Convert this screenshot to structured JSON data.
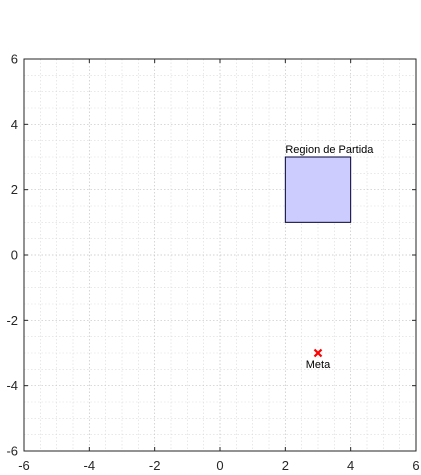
{
  "chart_data": {
    "type": "scatter",
    "title": "",
    "xlabel": "",
    "ylabel": "",
    "xlim": [
      -6,
      6
    ],
    "ylim": [
      -6,
      6
    ],
    "xticks": [
      -6,
      -4,
      -2,
      0,
      2,
      4,
      6
    ],
    "yticks": [
      -6,
      -4,
      -2,
      0,
      2,
      4,
      6
    ],
    "x_tick_labels": [
      "-6",
      "-4",
      "-2",
      "0",
      "2",
      "4",
      "6"
    ],
    "y_tick_labels": [
      "-6",
      "-4",
      "-2",
      "0",
      "2",
      "4",
      "6"
    ],
    "grid": "on",
    "minor_grid": "on",
    "minor_step": 0.5,
    "regions": [
      {
        "label": "Region de Partida",
        "x": [
          2,
          4
        ],
        "y": [
          1,
          3
        ],
        "fill_color": "#ccccff",
        "edge_color": "#000033"
      }
    ],
    "points": [
      {
        "label": "Meta",
        "x": 3,
        "y": -3,
        "marker": "x",
        "color": "#ff0000"
      }
    ]
  }
}
